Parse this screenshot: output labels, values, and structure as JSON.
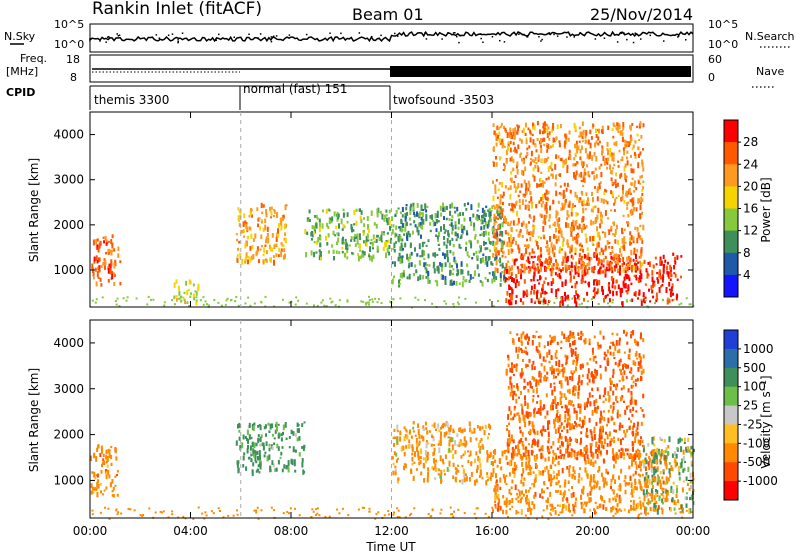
{
  "header": {
    "station": "Rankin Inlet (fitACF)",
    "beam": "Beam 01",
    "date": "25/Nov/2014"
  },
  "top_panels": {
    "nsky_label": "N.Sky",
    "nsearch_label": "N.Search",
    "freq_label_line1": "Freq.",
    "freq_label_line2": "[MHz]",
    "nave_label": "Nave",
    "cpid_label": "CPID",
    "nsky_ticks": [
      "10^5",
      "10^0"
    ],
    "nsearch_ticks": [
      "10^5",
      "10^0"
    ],
    "freq_ticks": [
      "18",
      "8"
    ],
    "nave_ticks": [
      "60",
      "0"
    ],
    "cpid_segments": [
      {
        "label": "themis 3300",
        "start_hour": 0,
        "end_hour": 6
      },
      {
        "label": "normal (fast) 151",
        "start_hour": 6,
        "end_hour": 12
      },
      {
        "label": "twofsound -3503",
        "start_hour": 12,
        "end_hour": 24
      }
    ]
  },
  "power_panel": {
    "ylabel": "Slant Range [km]",
    "cbar_label": "Power [dB]",
    "cbar_ticks": [
      "28",
      "24",
      "20",
      "16",
      "12",
      "8",
      "4"
    ],
    "cbar_colors": [
      "#ff0000",
      "#ff5a00",
      "#ff9a20",
      "#f5d400",
      "#86c93c",
      "#3e8f5a",
      "#1e5aa8",
      "#1414ff"
    ]
  },
  "velocity_panel": {
    "ylabel": "Slant Range [km]",
    "cbar_label": "Velocity [m s⁻¹]",
    "cbar_ticks": [
      "1000",
      "500",
      "100",
      "25",
      "-25",
      "-100",
      "-500",
      "-1000"
    ],
    "cbar_colors": [
      "#1f3fd6",
      "#2c6ea8",
      "#3e8f5a",
      "#6cc04a",
      "#c8c8c8",
      "#ffbe22",
      "#ff8a00",
      "#ff4a00",
      "#ff0000"
    ]
  },
  "axes": {
    "xlabel": "Time UT",
    "xticks": [
      "00:00",
      "04:00",
      "08:00",
      "12:00",
      "16:00",
      "20:00",
      "00:00"
    ],
    "yticks": [
      "1000",
      "2000",
      "3000",
      "4000"
    ]
  },
  "chart_data": {
    "type": "heatmap",
    "title": "Rankin Inlet (fitACF) Beam 01 25/Nov/2014",
    "xlabel": "Time UT",
    "x_range_hours": [
      0,
      24
    ],
    "ylabel": "Slant Range [km]",
    "ylim": [
      180,
      4500
    ],
    "panels": [
      {
        "name": "Power [dB]",
        "scale_range": [
          0,
          30
        ],
        "scatter_regions": [
          {
            "t": [
              0.0,
              1.2
            ],
            "r": [
              700,
              1800
            ],
            "value": 24
          },
          {
            "t": [
              3.3,
              4.3
            ],
            "r": [
              300,
              800
            ],
            "value": 16
          },
          {
            "t": [
              5.8,
              7.8
            ],
            "r": [
              1200,
              2500
            ],
            "value": 20
          },
          {
            "t": [
              8.5,
              12.0
            ],
            "r": [
              1300,
              2400
            ],
            "value": 12
          },
          {
            "t": [
              12.0,
              16.5
            ],
            "r": [
              700,
              2500
            ],
            "value": 10
          },
          {
            "t": [
              16.5,
              23.5
            ],
            "r": [
              300,
              1400
            ],
            "value": 28
          },
          {
            "t": [
              16.0,
              22.0
            ],
            "r": [
              1000,
              4300
            ],
            "value": 22
          }
        ]
      },
      {
        "name": "Velocity [m s-1]",
        "scale_range": [
          -1000,
          1000
        ],
        "scatter_regions": [
          {
            "t": [
              0.0,
              1.2
            ],
            "r": [
              700,
              1800
            ],
            "value": -300
          },
          {
            "t": [
              5.8,
              8.5
            ],
            "r": [
              1200,
              2300
            ],
            "value": 250
          },
          {
            "t": [
              12.0,
              16.0
            ],
            "r": [
              1000,
              2300
            ],
            "value": -200
          },
          {
            "t": [
              16.0,
              23.0
            ],
            "r": [
              350,
              1700
            ],
            "value": -300
          },
          {
            "t": [
              16.5,
              22.0
            ],
            "r": [
              1500,
              4300
            ],
            "value": -500
          },
          {
            "t": [
              22.0,
              24.0
            ],
            "r": [
              300,
              2000
            ],
            "value": 30
          }
        ]
      }
    ]
  }
}
